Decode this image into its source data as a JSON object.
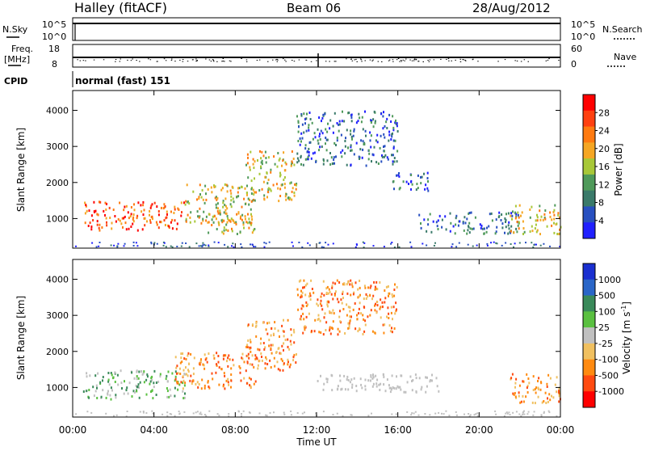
{
  "header": {
    "station": "Halley (fitACF)",
    "beam": "Beam 06",
    "date": "28/Aug/2012"
  },
  "top_panels": {
    "nsky_label": "N.Sky",
    "nsky_tick_top": "10^5",
    "nsky_tick_bottom": "10^0",
    "nsearch_label": "N.Search",
    "nsearch_tick_top": "10^5",
    "nsearch_tick_bottom": "10^0",
    "freq_label": "Freq.",
    "freq_unit": "[MHz]",
    "freq_tick_top": "18",
    "freq_tick_bottom": "8",
    "nave_label": "Nave",
    "nave_tick_top": "60",
    "nave_tick_bottom": "0",
    "cpid_label": "CPID",
    "cpid_value": "normal (fast) 151"
  },
  "colors": {
    "power_scale": [
      "#2020ff",
      "#2850c0",
      "#3a7a6a",
      "#4f9a5a",
      "#a8c838",
      "#f5a623",
      "#ff7a10",
      "#ff4010",
      "#ff0000"
    ],
    "velocity_scale": [
      "#1a2fd0",
      "#2a66c8",
      "#3a8a5a",
      "#5ac040",
      "#c0c0c0",
      "#f0c060",
      "#ff8a10",
      "#ff4a10",
      "#ff0000"
    ]
  },
  "chart_data": [
    {
      "type": "heatmap",
      "panel": "power",
      "xlabel": "",
      "ylabel": "Slant Range [km]",
      "x_ticks": [
        "00:00",
        "04:00",
        "08:00",
        "12:00",
        "16:00",
        "20:00",
        "00:00"
      ],
      "y_ticks": [
        "1000",
        "2000",
        "3000",
        "4000"
      ],
      "xlim_hours": [
        0,
        24
      ],
      "ylim_km": [
        180,
        4550
      ],
      "colorbar": {
        "label": "Power [dB]",
        "ticks": [
          "4",
          "8",
          "12",
          "16",
          "20",
          "24",
          "28"
        ],
        "range": [
          0,
          32
        ]
      },
      "echo_regions": [
        {
          "t": [
            0.5,
            5.5
          ],
          "r": [
            700,
            1500
          ],
          "level": "high"
        },
        {
          "t": [
            5.5,
            9.0
          ],
          "r": [
            900,
            2000
          ],
          "level": "mid"
        },
        {
          "t": [
            6.5,
            9.0
          ],
          "r": [
            600,
            1200
          ],
          "level": "mid"
        },
        {
          "t": [
            8.5,
            11.0
          ],
          "r": [
            1500,
            2900
          ],
          "level": "mid"
        },
        {
          "t": [
            11.0,
            16.0
          ],
          "r": [
            2500,
            4000
          ],
          "level": "low"
        },
        {
          "t": [
            15.5,
            17.5
          ],
          "r": [
            1800,
            2300
          ],
          "level": "low"
        },
        {
          "t": [
            17.0,
            22.0
          ],
          "r": [
            600,
            1200
          ],
          "level": "low"
        },
        {
          "t": [
            21.5,
            24.0
          ],
          "r": [
            600,
            1400
          ],
          "level": "mid"
        }
      ]
    },
    {
      "type": "heatmap",
      "panel": "velocity",
      "xlabel": "Time UT",
      "ylabel": "Slant Range [km]",
      "x_ticks": [
        "00:00",
        "04:00",
        "08:00",
        "12:00",
        "16:00",
        "20:00",
        "00:00"
      ],
      "y_ticks": [
        "1000",
        "2000",
        "3000",
        "4000"
      ],
      "xlim_hours": [
        0,
        24
      ],
      "ylim_km": [
        180,
        4550
      ],
      "colorbar": {
        "label": "Velocity [m s^-1]",
        "ticks": [
          "1000",
          "500",
          "100",
          "25",
          "-25",
          "-100",
          "-500",
          "-1000"
        ],
        "range": [
          -1500,
          1500
        ]
      },
      "echo_regions": [
        {
          "t": [
            0.5,
            5.5
          ],
          "r": [
            700,
            1500
          ],
          "level": "towards"
        },
        {
          "t": [
            5.0,
            9.0
          ],
          "r": [
            1000,
            2000
          ],
          "level": "away"
        },
        {
          "t": [
            8.5,
            11.0
          ],
          "r": [
            1500,
            2900
          ],
          "level": "away"
        },
        {
          "t": [
            11.0,
            16.0
          ],
          "r": [
            2500,
            4000
          ],
          "level": "away"
        },
        {
          "t": [
            12.0,
            18.0
          ],
          "r": [
            900,
            1400
          ],
          "level": "ground"
        },
        {
          "t": [
            21.5,
            24.0
          ],
          "r": [
            600,
            1400
          ],
          "level": "away"
        }
      ]
    }
  ]
}
